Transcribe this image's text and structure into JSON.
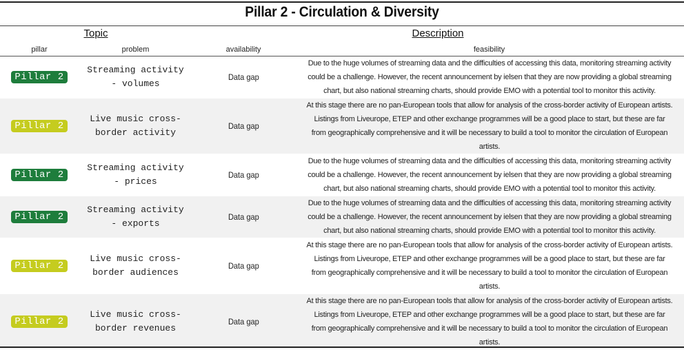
{
  "title": "Pillar 2 - Circulation & Diversity",
  "groups": {
    "topic": "Topic",
    "description": "Description"
  },
  "columns": {
    "pillar": "pillar",
    "problem": "problem",
    "availability": "availability",
    "feasibility": "feasibility"
  },
  "colors": {
    "pillar_dark": "#1e7d3c",
    "pillar_light": "#c5cc1f",
    "badge_text": "#ffffff"
  },
  "rows": [
    {
      "pillar": "Pillar 2",
      "badge": "dark",
      "problem_lines": [
        "Streaming activity",
        "- volumes"
      ],
      "availability": "Data gap",
      "feasibility_lines": [
        "Due to the huge volumes of streaming data and the difficulties of accessing this data, monitoring streaming activity",
        "could be a challenge. However, the recent announcement by ielsen that they are now providing a global streaming",
        "chart, but also national streaming charts, should provide EMO with a potential tool to monitor this activity."
      ]
    },
    {
      "pillar": "Pillar 2",
      "badge": "light",
      "problem_lines": [
        "Live music cross-",
        "border activity"
      ],
      "availability": "Data gap",
      "feasibility_lines": [
        "At this stage there are no pan-European tools that allow for analysis of the cross-border activity of European artists.",
        "Listings from Liveurope, ETEP and other exchange programmes will be a good place to start, but these are far",
        "from geographically comprehensive and it will be necessary to build a tool to monitor the circulation of European",
        "artists."
      ]
    },
    {
      "pillar": "Pillar 2",
      "badge": "dark",
      "problem_lines": [
        "Streaming activity",
        "- prices"
      ],
      "availability": "Data gap",
      "feasibility_lines": [
        "Due to the huge volumes of streaming data and the difficulties of accessing this data, monitoring streaming activity",
        "could be a challenge. However, the recent announcement by ielsen that they are now providing a global streaming",
        "chart, but also national streaming charts, should provide EMO with a potential tool to monitor this activity."
      ]
    },
    {
      "pillar": "Pillar 2",
      "badge": "dark",
      "problem_lines": [
        "Streaming activity",
        "- exports"
      ],
      "availability": "Data gap",
      "feasibility_lines": [
        "Due to the huge volumes of streaming data and the difficulties of accessing this data, monitoring streaming activity",
        "could be a challenge. However, the recent announcement by ielsen that they are now providing a global streaming",
        "chart, but also national streaming charts, should provide EMO with a potential tool to monitor this activity."
      ]
    },
    {
      "pillar": "Pillar 2",
      "badge": "light",
      "problem_lines": [
        "Live music cross-",
        "border audiences"
      ],
      "availability": "Data gap",
      "feasibility_lines": [
        "At this stage there are no pan-European tools that allow for analysis of the cross-border activity of European artists.",
        "Listings from Liveurope, ETEP and other exchange programmes will be a good place to start, but these are far",
        "from geographically comprehensive and it will be necessary to build a tool to monitor the circulation of European",
        "artists."
      ]
    },
    {
      "pillar": "Pillar 2",
      "badge": "light",
      "problem_lines": [
        "Live music cross-",
        "border revenues"
      ],
      "availability": "Data gap",
      "feasibility_lines": [
        "At this stage there are no pan-European tools that allow for analysis of the cross-border activity of European artists.",
        "Listings from Liveurope, ETEP and other exchange programmes will be a good place to start, but these are far",
        "from geographically comprehensive and it will be necessary to build a tool to monitor the circulation of European",
        "artists."
      ]
    }
  ]
}
